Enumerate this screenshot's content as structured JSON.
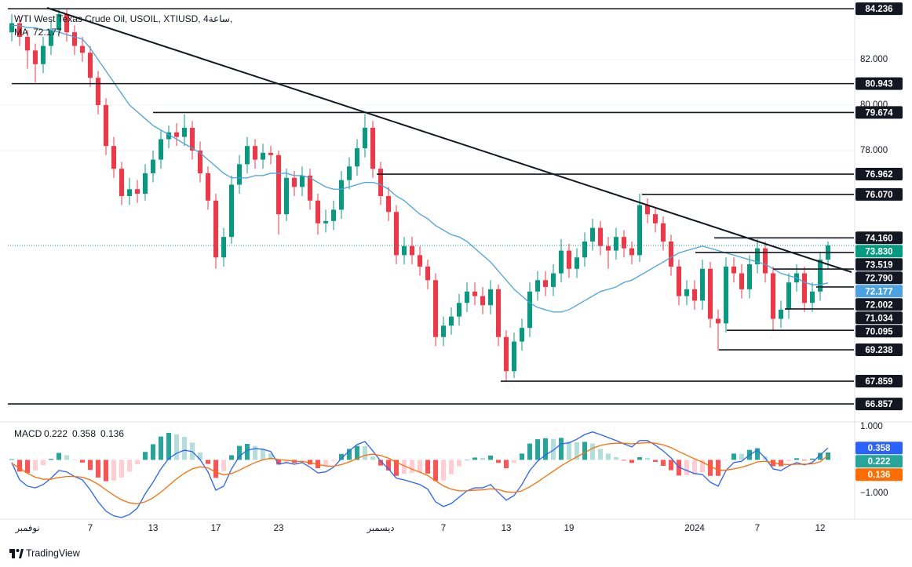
{
  "watermark": "TradingView",
  "chart_data": [
    {
      "type": "candlestick",
      "title": "WTI West Texas Crude Oil, USOIL, XTIUSD, 4ساعة,",
      "categories": [
        null,
        null,
        "نوفمبر",
        null,
        null,
        null,
        null,
        null,
        null,
        null,
        "7",
        null,
        null,
        null,
        null,
        null,
        null,
        null,
        "13",
        null,
        null,
        null,
        null,
        null,
        null,
        null,
        "17",
        null,
        null,
        null,
        null,
        null,
        null,
        null,
        "23",
        null,
        null,
        null,
        null,
        null,
        null,
        null,
        null,
        null,
        null,
        null,
        null,
        "ديسمبر",
        null,
        null,
        null,
        null,
        null,
        null,
        null,
        "7",
        null,
        null,
        null,
        null,
        null,
        null,
        null,
        "13",
        null,
        null,
        null,
        null,
        null,
        null,
        null,
        "19",
        null,
        null,
        null,
        null,
        null,
        null,
        null,
        null,
        null,
        null,
        null,
        null,
        null,
        null,
        null,
        "2024",
        null,
        null,
        null,
        null,
        null,
        null,
        null,
        "7",
        null,
        null,
        null,
        null,
        null,
        null,
        null,
        "12",
        null
      ],
      "open": [
        83.2,
        83.6,
        83.0,
        82.4,
        81.8,
        82.6,
        83.3,
        84.0,
        83.2,
        82.6,
        82.3,
        81.2,
        80.0,
        78.2,
        77.2,
        76.0,
        76.3,
        76.1,
        77.0,
        77.6,
        78.5,
        78.8,
        78.6,
        79.0,
        78.0,
        77.0,
        75.8,
        73.3,
        74.2,
        76.5,
        77.4,
        78.2,
        77.6,
        77.9,
        77.8,
        75.2,
        76.8,
        76.4,
        76.9,
        75.8,
        74.8,
        74.9,
        75.4,
        76.7,
        77.3,
        78.1,
        79.0,
        77.2,
        76.0,
        75.3,
        73.4,
        73.8,
        73.4,
        72.9,
        72.3,
        69.8,
        70.3,
        70.7,
        71.3,
        71.8,
        71.6,
        71.2,
        71.9,
        69.8,
        68.3,
        69.6,
        70.2,
        71.8,
        72.3,
        72.0,
        72.6,
        73.6,
        72.8,
        73.3,
        74.0,
        74.6,
        73.8,
        73.6,
        74.2,
        73.7,
        73.4,
        75.6,
        75.2,
        74.8,
        74.0,
        72.9,
        71.6,
        71.9,
        71.4,
        72.8,
        70.6,
        70.4,
        72.9,
        72.6,
        71.9,
        73.0,
        73.7,
        72.6,
        70.6,
        71.0,
        72.2,
        72.6,
        71.3,
        71.8,
        73.2
      ],
      "high": [
        84.0,
        83.9,
        83.3,
        82.7,
        83.0,
        83.7,
        84.2,
        84.2,
        83.5,
        83.0,
        82.6,
        81.5,
        80.3,
        78.6,
        77.5,
        76.8,
        76.7,
        77.4,
        78.0,
        78.9,
        79.1,
        79.2,
        79.6,
        79.3,
        78.4,
        77.3,
        76.1,
        74.6,
        76.9,
        77.8,
        78.6,
        78.5,
        78.3,
        78.2,
        78.0,
        77.2,
        77.1,
        77.3,
        77.2,
        76.1,
        75.4,
        75.8,
        77.1,
        77.7,
        78.5,
        79.6,
        79.3,
        77.5,
        76.4,
        75.6,
        74.2,
        74.2,
        73.8,
        73.2,
        72.6,
        70.7,
        71.1,
        71.7,
        72.2,
        72.2,
        72.0,
        72.3,
        72.1,
        70.1,
        70.0,
        70.6,
        72.2,
        72.7,
        72.7,
        73.0,
        74.1,
        73.9,
        73.7,
        74.4,
        75.0,
        74.9,
        74.2,
        74.6,
        74.5,
        74.0,
        76.1,
        75.9,
        75.5,
        75.1,
        74.3,
        73.2,
        72.3,
        72.3,
        73.2,
        73.1,
        71.0,
        73.3,
        73.3,
        73.0,
        73.4,
        74.1,
        74.0,
        72.9,
        71.4,
        72.6,
        73.0,
        72.9,
        72.2,
        73.5,
        74.0
      ],
      "low": [
        82.8,
        82.6,
        81.6,
        81.0,
        81.4,
        82.2,
        83.0,
        82.8,
        82.2,
        81.9,
        80.8,
        79.6,
        77.8,
        76.8,
        75.6,
        75.6,
        75.7,
        75.8,
        76.6,
        77.2,
        78.1,
        78.2,
        78.2,
        77.6,
        76.6,
        75.4,
        72.8,
        72.9,
        73.9,
        76.1,
        77.0,
        77.2,
        77.2,
        77.4,
        74.3,
        74.9,
        76.0,
        76.0,
        75.4,
        74.3,
        74.4,
        74.5,
        75.0,
        76.3,
        76.9,
        77.7,
        76.8,
        75.6,
        74.9,
        73.0,
        73.0,
        73.0,
        72.5,
        71.9,
        69.4,
        69.4,
        69.9,
        70.3,
        70.9,
        71.2,
        70.8,
        70.8,
        69.4,
        67.9,
        68.0,
        69.2,
        69.8,
        71.4,
        71.6,
        71.6,
        72.2,
        72.4,
        72.4,
        72.9,
        73.6,
        73.4,
        72.8,
        73.2,
        73.3,
        73.0,
        73.1,
        74.8,
        74.4,
        73.6,
        72.5,
        71.2,
        71.2,
        71.0,
        71.0,
        70.2,
        69.2,
        70.0,
        72.2,
        71.5,
        71.5,
        72.6,
        72.2,
        70.1,
        70.2,
        70.6,
        71.8,
        70.9,
        70.9,
        71.4,
        72.8
      ],
      "close": [
        83.6,
        83.0,
        82.4,
        81.8,
        82.6,
        83.3,
        84.0,
        83.2,
        82.6,
        82.3,
        81.2,
        80.0,
        78.2,
        77.2,
        76.0,
        76.3,
        76.1,
        77.0,
        77.6,
        78.5,
        78.8,
        78.6,
        79.0,
        78.0,
        77.0,
        75.8,
        73.3,
        74.2,
        76.5,
        77.4,
        78.2,
        77.6,
        77.9,
        77.8,
        75.2,
        76.8,
        76.4,
        76.9,
        75.8,
        74.8,
        74.9,
        75.4,
        76.7,
        77.3,
        78.1,
        79.0,
        77.2,
        76.0,
        75.3,
        73.4,
        73.8,
        73.4,
        72.9,
        72.3,
        69.8,
        70.3,
        70.7,
        71.3,
        71.8,
        71.6,
        71.2,
        71.9,
        69.8,
        68.3,
        69.6,
        70.2,
        71.8,
        72.3,
        72.0,
        72.6,
        73.6,
        72.8,
        73.3,
        74.0,
        74.6,
        73.8,
        73.6,
        74.2,
        73.7,
        73.4,
        75.6,
        75.2,
        74.8,
        74.0,
        72.9,
        71.6,
        71.9,
        71.4,
        72.8,
        70.6,
        70.4,
        72.9,
        72.6,
        71.9,
        73.0,
        73.7,
        72.6,
        70.6,
        71.0,
        72.2,
        72.6,
        71.3,
        71.8,
        73.2,
        73.83
      ],
      "up_color": "#089981",
      "down_color": "#f23645",
      "ma": {
        "name": "MA",
        "color": "#4aa3df",
        "values": [
          83.5,
          83.5,
          83.4,
          83.4,
          83.3,
          83.3,
          83.2,
          83.1,
          83.0,
          82.9,
          82.5,
          82.0,
          81.5,
          81.0,
          80.5,
          80.0,
          79.7,
          79.4,
          79.1,
          78.9,
          78.7,
          78.5,
          78.3,
          78.1,
          77.9,
          77.6,
          77.3,
          77.0,
          76.8,
          76.8,
          76.8,
          76.9,
          76.9,
          77.0,
          77.0,
          77.0,
          76.9,
          76.9,
          76.8,
          76.6,
          76.4,
          76.3,
          76.3,
          76.4,
          76.5,
          76.6,
          76.6,
          76.5,
          76.3,
          76.0,
          75.8,
          75.5,
          75.2,
          75.0,
          74.7,
          74.5,
          74.3,
          74.2,
          74.0,
          73.7,
          73.4,
          73.1,
          72.7,
          72.3,
          71.9,
          71.6,
          71.3,
          71.1,
          71.0,
          70.9,
          70.9,
          71.0,
          71.2,
          71.4,
          71.6,
          71.8,
          71.9,
          72.0,
          72.2,
          72.3,
          72.5,
          72.7,
          72.9,
          73.1,
          73.3,
          73.5,
          73.6,
          73.7,
          73.8,
          73.7,
          73.6,
          73.5,
          73.4,
          73.3,
          73.2,
          73.1,
          73.0,
          72.8,
          72.6,
          72.5,
          72.4,
          72.2,
          72.1,
          72.1,
          72.177
        ]
      },
      "last_price": {
        "value": 73.83,
        "label": "73.830",
        "color": "#089981"
      },
      "levels": [
        84.236,
        80.943,
        79.674,
        76.962,
        {
          "value": 76.07,
          "label": "76.070"
        },
        {
          "value": 74.16,
          "label": "74.160"
        },
        73.519,
        {
          "value": 72.79,
          "label": "72.790"
        },
        72.002,
        71.034,
        70.095,
        69.238,
        67.859,
        66.857
      ],
      "level_color": "#131722",
      "ylim": [
        66.17,
        84.62
      ],
      "yticks": [
        {
          "value": 78,
          "label": "78.000"
        },
        {
          "value": 80,
          "label": "80.000"
        },
        {
          "value": 82,
          "label": "82.000"
        }
      ],
      "grid": true
    },
    {
      "type": "macd",
      "title": "MACD",
      "series": [
        {
          "colors": [
            "#26a69a",
            "#b2dfdb",
            "#ff5252",
            "#ffcdd2"
          ],
          "values": [
            0.02,
            -0.35,
            -0.39,
            -0.32,
            -0.16,
            0.03,
            0.21,
            0.14,
            0.0,
            -0.08,
            -0.3,
            -0.53,
            -0.64,
            -0.62,
            -0.53,
            -0.35,
            -0.13,
            0.24,
            0.47,
            0.7,
            0.81,
            0.77,
            0.69,
            0.52,
            0.22,
            -0.12,
            -0.54,
            -0.34,
            0.14,
            0.42,
            0.48,
            0.42,
            0.32,
            0.2,
            -0.14,
            -0.07,
            -0.09,
            -0.03,
            -0.14,
            -0.25,
            -0.18,
            -0.03,
            0.18,
            0.33,
            0.42,
            0.41,
            0.1,
            -0.17,
            -0.32,
            -0.48,
            -0.42,
            -0.39,
            -0.37,
            -0.41,
            -0.63,
            -0.62,
            -0.43,
            -0.19,
            0.0,
            0.07,
            0.06,
            0.13,
            -0.09,
            -0.25,
            -0.09,
            0.19,
            0.49,
            0.62,
            0.65,
            0.63,
            0.66,
            0.55,
            0.53,
            0.54,
            0.49,
            0.33,
            0.19,
            0.08,
            -0.02,
            -0.09,
            0.08,
            0.06,
            -0.06,
            -0.18,
            -0.31,
            -0.47,
            -0.46,
            -0.44,
            -0.37,
            -0.48,
            -0.48,
            -0.01,
            0.19,
            0.18,
            0.3,
            0.35,
            0.1,
            -0.19,
            -0.19,
            -0.04,
            0.05,
            -0.02,
            0.04,
            0.21,
            0.222
          ]
        },
        {
          "color": "#2962ff",
          "values": [
            -0.08,
            -0.6,
            -0.79,
            -0.84,
            -0.74,
            -0.55,
            -0.32,
            -0.36,
            -0.5,
            -0.6,
            -0.9,
            -1.26,
            -1.54,
            -1.68,
            -1.73,
            -1.64,
            -1.45,
            -1.02,
            -0.67,
            -0.27,
            0.04,
            0.2,
            0.29,
            0.25,
            0.01,
            -0.36,
            -0.91,
            -0.79,
            -0.27,
            0.11,
            0.29,
            0.34,
            0.32,
            0.25,
            -0.13,
            -0.08,
            -0.13,
            -0.08,
            -0.22,
            -0.39,
            -0.36,
            -0.22,
            0.04,
            0.27,
            0.46,
            0.55,
            0.27,
            -0.04,
            -0.27,
            -0.55,
            -0.6,
            -0.67,
            -0.74,
            -0.88,
            -1.26,
            -1.4,
            -1.31,
            -1.12,
            -0.93,
            -0.84,
            -0.84,
            -0.74,
            -0.98,
            -1.21,
            -1.07,
            -0.74,
            -0.32,
            -0.04,
            0.15,
            0.29,
            0.48,
            0.51,
            0.62,
            0.76,
            0.84,
            0.76,
            0.67,
            0.58,
            0.48,
            0.39,
            0.58,
            0.58,
            0.44,
            0.27,
            0.06,
            -0.22,
            -0.32,
            -0.41,
            -0.44,
            -0.67,
            -0.79,
            -0.32,
            -0.08,
            -0.04,
            0.15,
            0.29,
            0.06,
            -0.27,
            -0.32,
            -0.18,
            -0.08,
            -0.15,
            -0.08,
            0.15,
            0.358
          ]
        },
        {
          "color": "#ff6d00",
          "values": [
            -0.1,
            -0.25,
            -0.4,
            -0.52,
            -0.58,
            -0.58,
            -0.53,
            -0.5,
            -0.5,
            -0.52,
            -0.6,
            -0.73,
            -0.9,
            -1.06,
            -1.2,
            -1.29,
            -1.32,
            -1.26,
            -1.14,
            -0.97,
            -0.77,
            -0.57,
            -0.4,
            -0.27,
            -0.21,
            -0.24,
            -0.37,
            -0.45,
            -0.41,
            -0.31,
            -0.19,
            -0.08,
            0.0,
            0.05,
            0.01,
            -0.01,
            -0.04,
            -0.05,
            -0.08,
            -0.14,
            -0.18,
            -0.19,
            -0.14,
            -0.06,
            0.04,
            0.14,
            0.17,
            0.13,
            0.05,
            -0.07,
            -0.18,
            -0.28,
            -0.37,
            -0.47,
            -0.63,
            -0.78,
            -0.88,
            -0.93,
            -0.93,
            -0.91,
            -0.9,
            -0.87,
            -0.89,
            -0.96,
            -0.98,
            -0.93,
            -0.81,
            -0.66,
            -0.5,
            -0.34,
            -0.18,
            -0.04,
            0.09,
            0.22,
            0.35,
            0.43,
            0.48,
            0.5,
            0.5,
            0.48,
            0.5,
            0.52,
            0.5,
            0.45,
            0.37,
            0.25,
            0.14,
            0.03,
            -0.07,
            -0.19,
            -0.31,
            -0.31,
            -0.27,
            -0.22,
            -0.15,
            -0.06,
            -0.04,
            -0.08,
            -0.13,
            -0.14,
            -0.13,
            -0.13,
            -0.12,
            -0.06,
            0.136
          ]
        }
      ],
      "ylim": [
        -1.78,
        1.14
      ],
      "yticks": [
        {
          "value": -1,
          "label": "−1.000"
        },
        {
          "value": 1,
          "label": "1.000"
        }
      ],
      "grid": false
    }
  ]
}
